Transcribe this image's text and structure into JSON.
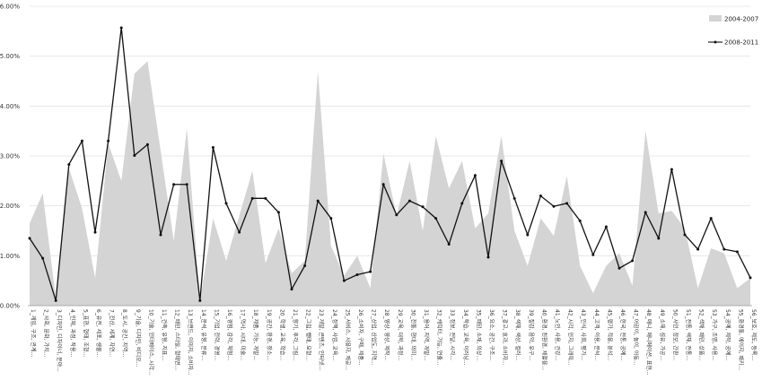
{
  "chart_data": {
    "type": "line",
    "title": "",
    "xlabel": "",
    "ylabel": "",
    "ylim": [
      0,
      6
    ],
    "yticks": [
      "0.00%",
      "1.00%",
      "2.00%",
      "3.00%",
      "4.00%",
      "5.00%",
      "6.00%"
    ],
    "grid": "horizontal",
    "legend_position": "top-right",
    "categories": [
      "1_게임, 구조, 관계...",
      "2_사회, 문화, 가치...",
      "3_디자인, 디자이너, 분야...",
      "4_인체, 과정, 작용...",
      "5_표현, 형태, 조형...",
      "6_유전, 세포, 생물...",
      "7_전산, 세계, 자연...",
      "8_도시, 공간, 지역...",
      "9_기술, 디자인, 비디오...",
      "10_기술, 인터페이스, 시각...",
      "11_건축, 유형, 지표...",
      "12_패턴, 스타일, 형태변...",
      "13_브랜드, 이미지, 소비자...",
      "14_분석, 유형, 분류...",
      "15_기업, 전략, 경영...",
      "16_경험, 감각, 체험...",
      "17_역사, 시대, 미술...",
      "18_제품, 기능, 개발...",
      "19_공간, 환경, 장소...",
      "20_학생, 교육, 학습...",
      "21_향기, 후각, 그림...",
      "22_그림, 행태, 모형...",
      "23_개발, 콘텐츠, 인터넷...",
      "24_정책, 사업, 교육...",
      "25_서비스, 사용자, 제공...",
      "26_소비자, 구매, 제품...",
      "27_산업, 산업도, 지역...",
      "28_영상, 영상, 제작...",
      "29_교육, 대학, 과정...",
      "30_전통, 현대, 의미...",
      "31_용어, 지역, 개발...",
      "32_캐릭터, 가능, 연출...",
      "33_정보, 전달, 시각...",
      "34_학습, 교육, 이러닝...",
      "35_패턴, 소재, 의상...",
      "36_요소, 공간, 구조...",
      "37_광고, 효과, 소비자...",
      "38_색채, 색상, 컬러...",
      "39_질감, 음악, 유구...",
      "40_환경, 친환경, 재활용...",
      "41_노인, 사용, 건강...",
      "42_시각, 인지, 그래픽...",
      "43_인식, 사회, 평가...",
      "44_고객, 이용, 분석...",
      "45_평가, 적용, 분석...",
      "46_한국, 전통, 공예...",
      "47_어린이, 놀이, 아동...",
      "48_애니, 애니메이션, 표현...",
      "49_소재, 섬유, 가공...",
      "50_사인, 정보, 간판...",
      "51_전통, 색채, 전통...",
      "52_색채, 패턴, 상품...",
      "53_가구, 조명, 사용...",
      "54_공예, 제작, 공예...",
      "55_환경통, 에이지, 패키...",
      "56_보호, 제도, 등록..."
    ],
    "series": [
      {
        "name": "2004-2007",
        "type": "area",
        "color": "#d4d4d4",
        "values": [
          1.65,
          2.25,
          0.15,
          2.75,
          1.95,
          0.55,
          3.25,
          2.5,
          4.65,
          4.9,
          3.1,
          1.3,
          3.55,
          0.1,
          1.75,
          0.9,
          1.8,
          2.7,
          0.85,
          1.55,
          0.65,
          0.9,
          4.7,
          1.2,
          0.6,
          1.0,
          0.35,
          3.05,
          1.8,
          2.9,
          1.5,
          3.4,
          2.35,
          2.9,
          1.55,
          1.85,
          3.4,
          1.5,
          0.8,
          1.75,
          1.4,
          2.6,
          0.8,
          0.25,
          0.8,
          1.05,
          0.4,
          3.5,
          1.85,
          1.9,
          1.55,
          0.35,
          1.15,
          1.05,
          0.35,
          0.55
        ]
      },
      {
        "name": "2008-2011",
        "type": "line",
        "color": "#111111",
        "values": [
          1.35,
          0.95,
          0.1,
          2.83,
          3.3,
          1.47,
          3.3,
          5.57,
          3.01,
          3.23,
          1.42,
          2.43,
          2.43,
          0.1,
          3.17,
          2.05,
          1.47,
          2.15,
          2.15,
          1.87,
          0.33,
          0.8,
          2.1,
          1.75,
          0.5,
          0.62,
          0.68,
          2.43,
          1.82,
          2.1,
          1.98,
          1.75,
          1.23,
          2.05,
          2.61,
          0.97,
          2.9,
          2.15,
          1.42,
          2.2,
          1.99,
          2.05,
          1.7,
          1.02,
          1.58,
          0.75,
          0.9,
          1.87,
          1.35,
          2.73,
          1.42,
          1.13,
          1.75,
          1.13,
          1.08,
          0.56
        ]
      }
    ]
  }
}
